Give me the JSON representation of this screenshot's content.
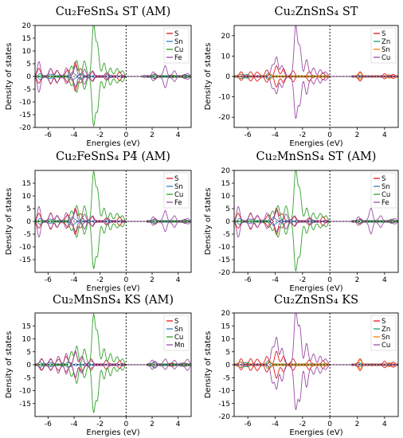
{
  "chart_data": [
    {
      "type": "line",
      "title": "Cu₂FeSnS₄ ST (AM)",
      "xlabel": "Energies (eV)",
      "ylabel": "Density of states",
      "xlim": [
        -7,
        5
      ],
      "ylim": [
        -20,
        20
      ],
      "yticks": [
        -20,
        -15,
        -10,
        -5,
        0,
        5,
        10,
        15,
        20
      ],
      "xticks": [
        -6,
        -4,
        -2,
        0,
        2,
        4
      ],
      "fermi_level": 0,
      "grid": false,
      "legend_position": "top-right",
      "series": [
        {
          "name": "S",
          "color": "#e41a1c",
          "peaks": [
            [
              -6.7,
              3
            ],
            [
              -5.8,
              2.8
            ],
            [
              -5.3,
              2.2
            ],
            [
              -4.5,
              2.5
            ],
            [
              -3.9,
              5.5
            ],
            [
              -3.5,
              3
            ],
            [
              -2.6,
              1.5
            ],
            [
              -1.5,
              1
            ],
            [
              -0.5,
              1.5
            ],
            [
              2.2,
              0.8
            ],
            [
              3.5,
              0.3
            ],
            [
              4.5,
              0.4
            ]
          ]
        },
        {
          "name": "Sn",
          "color": "#377eb8",
          "peaks": [
            [
              -6.6,
              0.8
            ],
            [
              -5.8,
              0.8
            ],
            [
              -4.1,
              1.5
            ],
            [
              -3.5,
              0.8
            ],
            [
              2.2,
              0.6
            ],
            [
              4.5,
              0.5
            ]
          ]
        },
        {
          "name": "Cu",
          "color": "#33a02c",
          "peaks": [
            [
              -4.2,
              4
            ],
            [
              -3.8,
              6
            ],
            [
              -3.2,
              6
            ],
            [
              -2.5,
              20
            ],
            [
              -2.2,
              12
            ],
            [
              -1.7,
              5
            ],
            [
              -1.2,
              3
            ],
            [
              -0.7,
              3
            ],
            [
              -0.3,
              2
            ]
          ]
        },
        {
          "name": "Fe",
          "color": "#984ea3",
          "peaks": [
            [
              -6.7,
              5.5
            ],
            [
              -5.8,
              3
            ],
            [
              -5.3,
              2
            ],
            [
              -4.6,
              3
            ],
            [
              -3.9,
              4
            ],
            [
              -3.2,
              2.5
            ],
            [
              -2.6,
              2
            ],
            [
              -1.4,
              1
            ],
            [
              1.4,
              0.5
            ],
            [
              2.1,
              1.5
            ],
            [
              3.0,
              4
            ],
            [
              3.7,
              2
            ],
            [
              4.7,
              1
            ]
          ]
        }
      ]
    },
    {
      "type": "line",
      "title": "Cu₂ZnSnS₄ ST",
      "xlabel": "Energies (eV)",
      "ylabel": "Density of states",
      "xlim": [
        -7,
        5
      ],
      "ylim": [
        -25,
        25
      ],
      "yticks": [
        -20,
        -10,
        0,
        10,
        20
      ],
      "xticks": [
        -6,
        -4,
        -2,
        0,
        2,
        4
      ],
      "fermi_level": 0,
      "grid": false,
      "legend_position": "top-right",
      "series": [
        {
          "name": "S",
          "color": "#e41a1c",
          "peaks": [
            [
              -6.5,
              2
            ],
            [
              -5.8,
              2
            ],
            [
              -5.3,
              2
            ],
            [
              -4.6,
              3
            ],
            [
              -3.9,
              5
            ],
            [
              -3.4,
              3.5
            ],
            [
              -2.7,
              2.5
            ],
            [
              -1.5,
              2
            ],
            [
              -0.5,
              1.5
            ],
            [
              2.2,
              2
            ],
            [
              4.0,
              1
            ],
            [
              4.6,
              0.8
            ]
          ]
        },
        {
          "name": "Zn",
          "color": "#1b9e77",
          "peaks": [
            [
              -6.5,
              1
            ],
            [
              -6.1,
              0.8
            ],
            [
              -4.5,
              1.2
            ],
            [
              2.2,
              0.5
            ]
          ]
        },
        {
          "name": "Sn",
          "color": "#ff7f00",
          "peaks": [
            [
              -6.6,
              0.8
            ],
            [
              -4.4,
              1
            ],
            [
              2.2,
              1.5
            ],
            [
              4.3,
              0.5
            ]
          ]
        },
        {
          "name": "Cu",
          "color": "#984ea3",
          "peaks": [
            [
              -4.2,
              5
            ],
            [
              -3.9,
              9
            ],
            [
              -3.5,
              5
            ],
            [
              -2.5,
              24
            ],
            [
              -2.2,
              14
            ],
            [
              -1.7,
              8
            ],
            [
              -1.2,
              4
            ],
            [
              -0.7,
              3
            ],
            [
              -0.3,
              2
            ]
          ]
        }
      ]
    },
    {
      "type": "line",
      "title": "Cu₂FeSnS₄ P4̄ (AM)",
      "xlabel": "Energies (eV)",
      "ylabel": "Density of states",
      "xlim": [
        -7,
        5
      ],
      "ylim": [
        -20,
        20
      ],
      "yticks": [
        -15,
        -10,
        -5,
        0,
        5,
        10,
        15
      ],
      "xticks": [
        -6,
        -4,
        -2,
        0,
        2,
        4
      ],
      "fermi_level": 0,
      "grid": false,
      "legend_position": "top-right",
      "series": [
        {
          "name": "S",
          "color": "#e41a1c",
          "peaks": [
            [
              -6.7,
              3
            ],
            [
              -5.8,
              3
            ],
            [
              -5.3,
              2
            ],
            [
              -4.5,
              2.5
            ],
            [
              -3.9,
              5
            ],
            [
              -3.5,
              3
            ],
            [
              -2.6,
              1.5
            ],
            [
              -1.5,
              1
            ],
            [
              -0.5,
              1.5
            ],
            [
              2.2,
              0.8
            ],
            [
              4.5,
              0.4
            ]
          ]
        },
        {
          "name": "Sn",
          "color": "#377eb8",
          "peaks": [
            [
              -6.6,
              0.8
            ],
            [
              -5.8,
              0.8
            ],
            [
              -4.1,
              1.5
            ],
            [
              2.2,
              0.6
            ],
            [
              4.5,
              0.5
            ]
          ]
        },
        {
          "name": "Cu",
          "color": "#33a02c",
          "peaks": [
            [
              -4.2,
              4
            ],
            [
              -3.8,
              6
            ],
            [
              -3.2,
              6
            ],
            [
              -2.5,
              19
            ],
            [
              -2.2,
              12
            ],
            [
              -1.7,
              5
            ],
            [
              -1.2,
              3
            ],
            [
              -0.7,
              3
            ],
            [
              -0.3,
              2
            ]
          ]
        },
        {
          "name": "Fe",
          "color": "#984ea3",
          "peaks": [
            [
              -6.7,
              5.5
            ],
            [
              -5.8,
              3
            ],
            [
              -5.3,
              2
            ],
            [
              -4.6,
              3
            ],
            [
              -3.9,
              4
            ],
            [
              -3.2,
              2.5
            ],
            [
              -2.6,
              2
            ],
            [
              -1.4,
              1
            ],
            [
              2.1,
              1.5
            ],
            [
              3.0,
              4
            ],
            [
              3.7,
              2
            ],
            [
              4.7,
              1
            ]
          ]
        }
      ]
    },
    {
      "type": "line",
      "title": "Cu₂MnSnS₄ ST (AM)",
      "xlabel": "Energies (eV)",
      "ylabel": "Density of states",
      "xlim": [
        -7,
        5
      ],
      "ylim": [
        -20,
        20
      ],
      "yticks": [
        -20,
        -15,
        -10,
        -5,
        0,
        5,
        10,
        15,
        20
      ],
      "xticks": [
        -6,
        -4,
        -2,
        0,
        2,
        4
      ],
      "fermi_level": 0,
      "grid": false,
      "legend_position": "top-right",
      "series": [
        {
          "name": "S",
          "color": "#e41a1c",
          "peaks": [
            [
              -6.7,
              3
            ],
            [
              -5.8,
              3
            ],
            [
              -5.3,
              2
            ],
            [
              -4.5,
              2.5
            ],
            [
              -3.9,
              5
            ],
            [
              -3.5,
              3
            ],
            [
              -2.6,
              1.5
            ],
            [
              -1.5,
              1
            ],
            [
              -0.5,
              1.5
            ],
            [
              2.2,
              0.8
            ],
            [
              4.5,
              0.4
            ]
          ]
        },
        {
          "name": "Sn",
          "color": "#377eb8",
          "peaks": [
            [
              -6.6,
              0.8
            ],
            [
              -5.8,
              0.8
            ],
            [
              -4.1,
              1.5
            ],
            [
              2.2,
              0.6
            ],
            [
              4.5,
              0.5
            ]
          ]
        },
        {
          "name": "Cu",
          "color": "#33a02c",
          "peaks": [
            [
              -4.2,
              4
            ],
            [
              -3.8,
              6
            ],
            [
              -3.2,
              6
            ],
            [
              -2.5,
              20
            ],
            [
              -2.2,
              12
            ],
            [
              -1.7,
              5
            ],
            [
              -1.2,
              3
            ],
            [
              -0.7,
              3
            ],
            [
              -0.3,
              2
            ]
          ]
        },
        {
          "name": "Fe",
          "color": "#984ea3",
          "peaks": [
            [
              -6.7,
              5.5
            ],
            [
              -5.8,
              3
            ],
            [
              -5.3,
              2
            ],
            [
              -4.6,
              3
            ],
            [
              -3.9,
              4
            ],
            [
              -3.2,
              2.5
            ],
            [
              -2.6,
              2
            ],
            [
              -1.4,
              1
            ],
            [
              2.1,
              1.5
            ],
            [
              3.0,
              5
            ],
            [
              3.7,
              2
            ],
            [
              4.7,
              1
            ]
          ]
        }
      ]
    },
    {
      "type": "line",
      "title": "Cu₂MnSnS₄ KS (AM)",
      "xlabel": "Energies (eV)",
      "ylabel": "Density of states",
      "xlim": [
        -7,
        5
      ],
      "ylim": [
        -20,
        20
      ],
      "yticks": [
        -15,
        -10,
        -5,
        0,
        5,
        10,
        15
      ],
      "xticks": [
        -6,
        -4,
        -2,
        0,
        2,
        4
      ],
      "fermi_level": 0,
      "grid": false,
      "legend_position": "top-right",
      "series": [
        {
          "name": "S",
          "color": "#e41a1c",
          "peaks": [
            [
              -6.5,
              2
            ],
            [
              -5.8,
              2
            ],
            [
              -5.2,
              2
            ],
            [
              -4.6,
              3
            ],
            [
              -3.9,
              5
            ],
            [
              -3.4,
              3
            ],
            [
              -2.7,
              2
            ],
            [
              -1.5,
              1.5
            ],
            [
              -0.5,
              1.2
            ],
            [
              2.2,
              1
            ],
            [
              3.5,
              0.5
            ],
            [
              4.5,
              0.5
            ]
          ]
        },
        {
          "name": "Sn",
          "color": "#377eb8",
          "peaks": [
            [
              -6.6,
              0.8
            ],
            [
              -5.8,
              0.8
            ],
            [
              -4.4,
              1
            ],
            [
              2.2,
              1
            ],
            [
              4.3,
              0.4
            ]
          ]
        },
        {
          "name": "Cu",
          "color": "#33a02c",
          "peaks": [
            [
              -4.2,
              5
            ],
            [
              -3.8,
              7
            ],
            [
              -3.2,
              6
            ],
            [
              -2.5,
              19
            ],
            [
              -2.2,
              12
            ],
            [
              -1.7,
              6
            ],
            [
              -1.2,
              4
            ],
            [
              -0.7,
              3
            ],
            [
              -0.3,
              2
            ]
          ]
        },
        {
          "name": "Mn",
          "color": "#984ea3",
          "peaks": [
            [
              -6.5,
              2
            ],
            [
              -5.8,
              2
            ],
            [
              -5.2,
              3
            ],
            [
              -4.6,
              4
            ],
            [
              -3.9,
              5
            ],
            [
              -3.4,
              3
            ],
            [
              -2.7,
              1.5
            ],
            [
              2.0,
              1.5
            ],
            [
              3.0,
              2
            ],
            [
              3.7,
              1.5
            ],
            [
              4.7,
              2
            ]
          ]
        }
      ]
    },
    {
      "type": "line",
      "title": "Cu₂ZnSnS₄ KS",
      "xlabel": "Energies (eV)",
      "ylabel": "Density of states",
      "xlim": [
        -7,
        5
      ],
      "ylim": [
        -20,
        20
      ],
      "yticks": [
        -20,
        -15,
        -10,
        -5,
        0,
        5,
        10,
        15,
        20
      ],
      "xticks": [
        -6,
        -4,
        -2,
        0,
        2,
        4
      ],
      "fermi_level": 0,
      "grid": false,
      "legend_position": "top-right",
      "series": [
        {
          "name": "S",
          "color": "#e41a1c",
          "peaks": [
            [
              -6.5,
              2
            ],
            [
              -5.8,
              2
            ],
            [
              -5.3,
              2
            ],
            [
              -4.6,
              3
            ],
            [
              -3.9,
              5
            ],
            [
              -3.4,
              3
            ],
            [
              -2.7,
              2
            ],
            [
              -1.5,
              1.5
            ],
            [
              -0.5,
              1.2
            ],
            [
              2.2,
              2
            ],
            [
              4.0,
              1
            ],
            [
              4.6,
              0.8
            ]
          ]
        },
        {
          "name": "Zn",
          "color": "#1b9e77",
          "peaks": [
            [
              -6.5,
              1
            ],
            [
              -6.1,
              0.8
            ],
            [
              -4.5,
              1.2
            ],
            [
              2.2,
              0.5
            ]
          ]
        },
        {
          "name": "Sn",
          "color": "#ff7f00",
          "peaks": [
            [
              -6.6,
              0.8
            ],
            [
              -4.4,
              1
            ],
            [
              2.2,
              1.5
            ],
            [
              4.3,
              0.5
            ]
          ]
        },
        {
          "name": "Cu",
          "color": "#984ea3",
          "peaks": [
            [
              -4.2,
              6
            ],
            [
              -3.9,
              10
            ],
            [
              -3.5,
              6
            ],
            [
              -2.5,
              20
            ],
            [
              -2.2,
              14
            ],
            [
              -1.7,
              8
            ],
            [
              -1.2,
              4
            ],
            [
              -0.7,
              3
            ],
            [
              -0.3,
              2
            ]
          ]
        }
      ]
    }
  ]
}
